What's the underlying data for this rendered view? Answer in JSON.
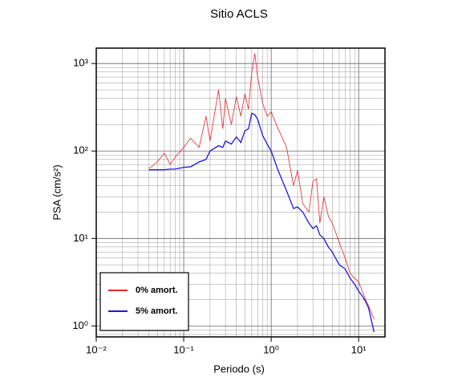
{
  "chart_data": {
    "type": "line",
    "title": "Sitio ACLS",
    "x_label": "Periodo (s)",
    "y_label": "PSA (cm/s²)",
    "log_x": true,
    "log_y": true,
    "grid": true,
    "legend_position": "lower-left",
    "xlim": [
      0.01,
      20
    ],
    "ylim": [
      0.75,
      1500
    ],
    "xticks": [
      {
        "value": 0.01,
        "label": "10⁻²"
      },
      {
        "value": 0.1,
        "label": "10⁻¹"
      },
      {
        "value": 1,
        "label": "10⁰"
      },
      {
        "value": 10,
        "label": "10¹"
      }
    ],
    "yticks": [
      {
        "value": 1,
        "label": "10⁰"
      },
      {
        "value": 10,
        "label": "10¹"
      },
      {
        "value": 100,
        "label": "10²"
      },
      {
        "value": 1000,
        "label": "10³"
      }
    ],
    "x": [
      0.04,
      0.05,
      0.06,
      0.07,
      0.08,
      0.1,
      0.12,
      0.15,
      0.18,
      0.2,
      0.25,
      0.28,
      0.3,
      0.35,
      0.4,
      0.45,
      0.5,
      0.55,
      0.6,
      0.65,
      0.7,
      0.8,
      0.9,
      1.0,
      1.2,
      1.5,
      1.8,
      2,
      2.3,
      2.7,
      3,
      3.3,
      3.6,
      4,
      4.5,
      5,
      6,
      7,
      8,
      9,
      10,
      11,
      12,
      13,
      15
    ],
    "series": [
      {
        "name": "0% amort.",
        "color": "#e8262b",
        "values": [
          63,
          75,
          95,
          70,
          85,
          110,
          140,
          110,
          250,
          130,
          500,
          180,
          400,
          200,
          420,
          250,
          450,
          300,
          800,
          1300,
          700,
          350,
          250,
          280,
          180,
          110,
          40,
          60,
          25,
          20,
          45,
          48,
          15,
          30,
          18,
          15,
          9,
          6,
          4,
          3.5,
          3.2,
          2.5,
          2,
          1.7,
          1.2
        ]
      },
      {
        "name": "5% amort.",
        "color": "#1a1ae6",
        "values": [
          61,
          61,
          61,
          62,
          62,
          65,
          66,
          75,
          80,
          100,
          115,
          110,
          130,
          120,
          145,
          125,
          170,
          180,
          270,
          260,
          230,
          150,
          120,
          100,
          60,
          35,
          22,
          23,
          20,
          15,
          13,
          14,
          11,
          10,
          8,
          7,
          5,
          4.5,
          3.5,
          3,
          2.5,
          2.2,
          1.9,
          1.6,
          0.85
        ]
      }
    ]
  }
}
